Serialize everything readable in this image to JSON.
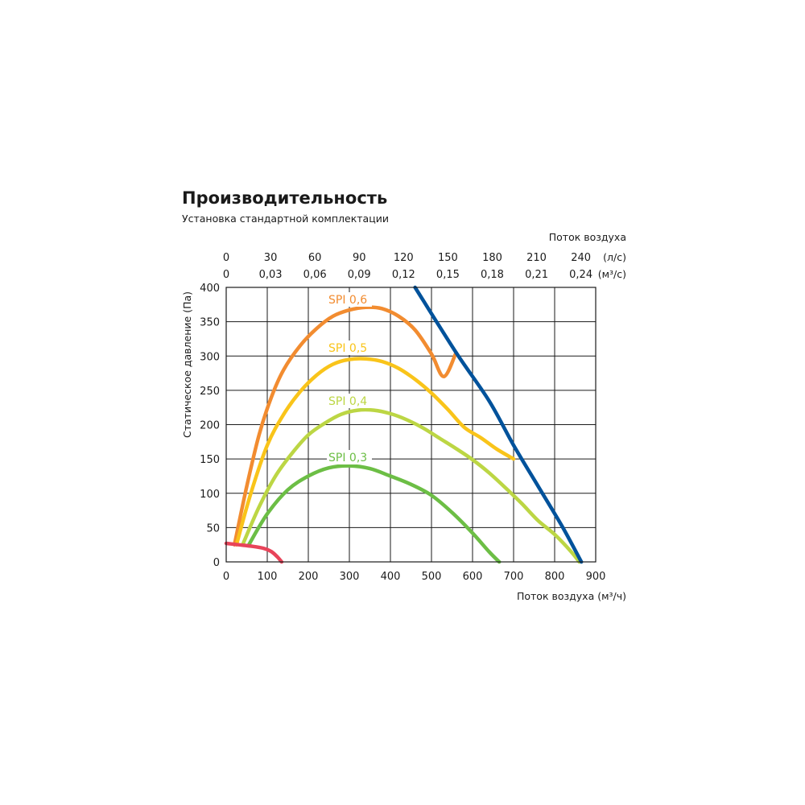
{
  "header": {
    "title": "Производительность",
    "subtitle": "Установка стандартной комплектации"
  },
  "chart_data": {
    "type": "line",
    "xlabel": "Поток воздуха (м³/ч)",
    "ylabel": "Статическое давление (Па)",
    "xlim": [
      0,
      900
    ],
    "ylim": [
      0,
      400
    ],
    "grid": true,
    "x_ticks": [
      "0",
      "100",
      "200",
      "300",
      "400",
      "500",
      "600",
      "700",
      "800",
      "900"
    ],
    "y_ticks": [
      "0",
      "50",
      "100",
      "150",
      "200",
      "250",
      "300",
      "350",
      "400"
    ],
    "top_axis": {
      "label": "Поток воздуха",
      "ls": {
        "unit": "(л/с)",
        "ticks": [
          "0",
          "30",
          "60",
          "90",
          "120",
          "150",
          "180",
          "210",
          "240"
        ],
        "values": [
          0,
          30,
          60,
          90,
          120,
          150,
          180,
          210,
          240
        ]
      },
      "m3s": {
        "unit": "(м³/с)",
        "ticks": [
          "0",
          "0,03",
          "0,06",
          "0,09",
          "0,12",
          "0,15",
          "0,18",
          "0,21",
          "0,24"
        ]
      }
    },
    "series": [
      {
        "name": "SPI 0,6",
        "color": "#f28c30",
        "x": [
          20,
          50,
          80,
          110,
          140,
          180,
          220,
          260,
          300,
          340,
          380,
          420,
          460,
          500,
          530,
          560
        ],
        "y": [
          25,
          110,
          185,
          240,
          280,
          315,
          340,
          358,
          367,
          371,
          369,
          358,
          338,
          303,
          270,
          305
        ]
      },
      {
        "name": "SPI 0,5",
        "color": "#f9c41a",
        "x": [
          25,
          60,
          100,
          140,
          180,
          220,
          260,
          300,
          340,
          380,
          420,
          460,
          500,
          540,
          580,
          620,
          660,
          700
        ],
        "y": [
          25,
          100,
          170,
          215,
          248,
          272,
          288,
          295,
          296,
          292,
          282,
          266,
          246,
          222,
          196,
          181,
          164,
          150
        ]
      },
      {
        "name": "SPI 0,4",
        "color": "#bcd644",
        "x": [
          40,
          80,
          120,
          160,
          200,
          240,
          280,
          320,
          360,
          400,
          440,
          480,
          520,
          560,
          600,
          640,
          680,
          720,
          760,
          800,
          840,
          860
        ],
        "y": [
          25,
          80,
          125,
          158,
          185,
          202,
          215,
          221,
          221,
          216,
          207,
          195,
          180,
          165,
          149,
          130,
          108,
          85,
          60,
          40,
          15,
          0
        ]
      },
      {
        "name": "SPI 0,3",
        "color": "#6cbe45",
        "x": [
          55,
          100,
          150,
          200,
          250,
          300,
          350,
          400,
          450,
          500,
          550,
          600,
          640,
          665
        ],
        "y": [
          25,
          70,
          105,
          125,
          137,
          140,
          136,
          125,
          113,
          97,
          72,
          42,
          15,
          0
        ]
      },
      {
        "name": "",
        "color": "#00529b",
        "x": [
          460,
          560,
          640,
          700,
          760,
          820,
          865
        ],
        "y": [
          400,
          305,
          235,
          170,
          110,
          50,
          0
        ]
      },
      {
        "name": "",
        "color": "#e8445a",
        "x": [
          0,
          30,
          60,
          90,
          110,
          125,
          135
        ],
        "y": [
          27,
          25,
          23,
          20,
          15,
          7,
          0
        ]
      }
    ]
  }
}
